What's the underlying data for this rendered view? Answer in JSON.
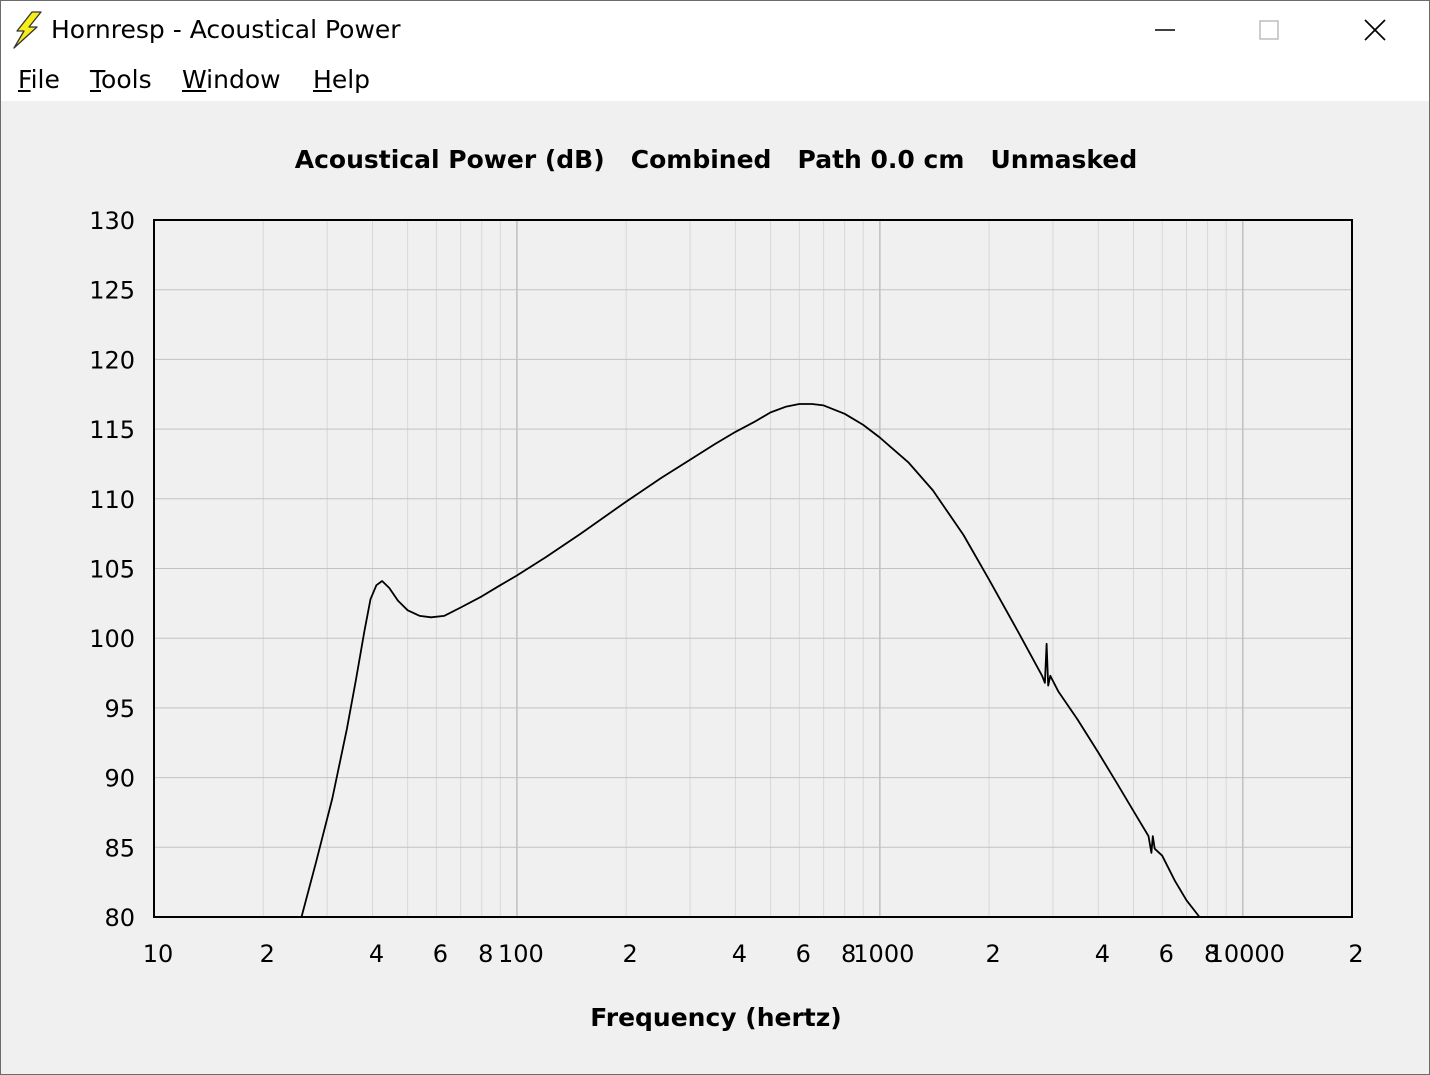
{
  "window": {
    "title": "Hornresp - Acoustical Power",
    "app_icon": "lightning-bolt-icon",
    "controls": [
      "minimize-icon",
      "maximize-icon",
      "close-icon"
    ]
  },
  "menu": {
    "items": [
      {
        "id": "file",
        "accel": "F",
        "rest": "ile"
      },
      {
        "id": "tools",
        "accel": "T",
        "rest": "ools"
      },
      {
        "id": "window",
        "accel": "W",
        "rest": "indow"
      },
      {
        "id": "help",
        "accel": "H",
        "rest": "elp"
      }
    ]
  },
  "chart_data": {
    "type": "line",
    "title": "Acoustical Power (dB)   Combined   Path 0.0 cm   Unmasked",
    "xlabel": "Frequency (hertz)",
    "ylabel": "",
    "xscale": "log",
    "xlim": [
      10,
      20000
    ],
    "ylim": [
      80,
      130
    ],
    "grid": true,
    "legend": "none",
    "line_color": "#000000",
    "grid_color": "#d8d8d8",
    "major_grid_color": "#c2c2c2",
    "y_ticks": [
      80,
      85,
      90,
      95,
      100,
      105,
      110,
      115,
      120,
      125,
      130
    ],
    "x_ticks": [
      {
        "value": 10,
        "label": "10"
      },
      {
        "value": 20,
        "label": "2"
      },
      {
        "value": 40,
        "label": "4"
      },
      {
        "value": 60,
        "label": "6"
      },
      {
        "value": 80,
        "label": "8"
      },
      {
        "value": 100,
        "label": "100"
      },
      {
        "value": 200,
        "label": "2"
      },
      {
        "value": 400,
        "label": "4"
      },
      {
        "value": 600,
        "label": "6"
      },
      {
        "value": 800,
        "label": "8"
      },
      {
        "value": 1000,
        "label": "1000"
      },
      {
        "value": 2000,
        "label": "2"
      },
      {
        "value": 4000,
        "label": "4"
      },
      {
        "value": 6000,
        "label": "6"
      },
      {
        "value": 8000,
        "label": "8"
      },
      {
        "value": 10000,
        "label": "10000"
      },
      {
        "value": 20000,
        "label": "2"
      }
    ],
    "series": [
      {
        "points": [
          [
            25.5,
            80.0
          ],
          [
            28,
            84.0
          ],
          [
            31,
            88.5
          ],
          [
            34,
            93.5
          ],
          [
            36,
            97.0
          ],
          [
            38,
            100.5
          ],
          [
            39.5,
            102.8
          ],
          [
            41,
            103.8
          ],
          [
            42.5,
            104.1
          ],
          [
            44.5,
            103.6
          ],
          [
            47,
            102.7
          ],
          [
            50,
            102.0
          ],
          [
            54,
            101.6
          ],
          [
            58,
            101.5
          ],
          [
            63,
            101.6
          ],
          [
            70,
            102.2
          ],
          [
            80,
            103.0
          ],
          [
            90,
            103.8
          ],
          [
            100,
            104.5
          ],
          [
            120,
            105.8
          ],
          [
            150,
            107.5
          ],
          [
            200,
            109.8
          ],
          [
            250,
            111.5
          ],
          [
            300,
            112.8
          ],
          [
            350,
            113.9
          ],
          [
            400,
            114.8
          ],
          [
            450,
            115.5
          ],
          [
            500,
            116.2
          ],
          [
            550,
            116.6
          ],
          [
            600,
            116.8
          ],
          [
            650,
            116.8
          ],
          [
            700,
            116.7
          ],
          [
            800,
            116.1
          ],
          [
            900,
            115.3
          ],
          [
            1000,
            114.4
          ],
          [
            1200,
            112.6
          ],
          [
            1400,
            110.6
          ],
          [
            1700,
            107.4
          ],
          [
            2000,
            104.2
          ],
          [
            2400,
            100.5
          ],
          [
            2800,
            97.3
          ],
          [
            2850,
            96.8
          ],
          [
            2880,
            99.6
          ],
          [
            2910,
            96.6
          ],
          [
            2950,
            97.3
          ],
          [
            3100,
            96.2
          ],
          [
            3500,
            94.2
          ],
          [
            4000,
            91.8
          ],
          [
            4500,
            89.6
          ],
          [
            5000,
            87.6
          ],
          [
            5500,
            85.8
          ],
          [
            5600,
            84.6
          ],
          [
            5650,
            85.8
          ],
          [
            5720,
            84.9
          ],
          [
            6000,
            84.4
          ],
          [
            6500,
            82.6
          ],
          [
            7000,
            81.2
          ],
          [
            7600,
            80.0
          ]
        ]
      }
    ]
  },
  "x_axis_label": "Frequency (hertz)"
}
